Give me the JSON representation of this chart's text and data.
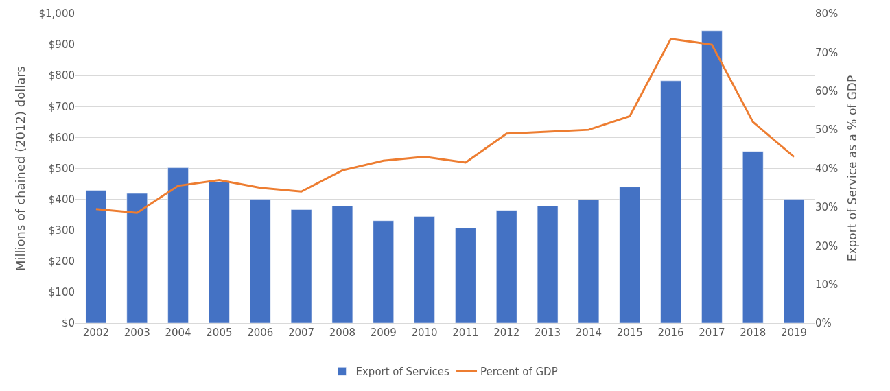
{
  "chart_data": {
    "type": "bar",
    "ylabel": "Millions of chained (2012) dollars",
    "y2label": "Export of Service as a % of GDP",
    "categories": [
      "2002",
      "2003",
      "2004",
      "2005",
      "2006",
      "2007",
      "2008",
      "2009",
      "2010",
      "2011",
      "2012",
      "2013",
      "2014",
      "2015",
      "2016",
      "2017",
      "2018",
      "2019"
    ],
    "series": [
      {
        "name": "Export of Services",
        "color": "#4472c4",
        "values": [
          429,
          419,
          502,
          457,
          400,
          367,
          379,
          331,
          345,
          307,
          364,
          379,
          398,
          440,
          783,
          945,
          555,
          400
        ]
      },
      {
        "name": "Percent of GDP",
        "type": "line",
        "axis": "y2",
        "color": "#ed7d31",
        "values": [
          29.5,
          28.5,
          35.5,
          37,
          35,
          34,
          39.5,
          42,
          43,
          41.5,
          49,
          49.5,
          50,
          53.5,
          73.5,
          72,
          52,
          43
        ]
      }
    ],
    "ylim": [
      0,
      1000
    ],
    "yticks": [
      {
        "value": 0,
        "label": "$0"
      },
      {
        "value": 100,
        "label": "$100"
      },
      {
        "value": 200,
        "label": "$200"
      },
      {
        "value": 300,
        "label": "$300"
      },
      {
        "value": 400,
        "label": "$400"
      },
      {
        "value": 500,
        "label": "$500"
      },
      {
        "value": 600,
        "label": "$600"
      },
      {
        "value": 700,
        "label": "$700"
      },
      {
        "value": 800,
        "label": "$800"
      },
      {
        "value": 900,
        "label": "$900"
      },
      {
        "value": 1000,
        "label": "$1,000"
      }
    ],
    "y2lim": [
      0,
      80
    ],
    "y2ticks": [
      {
        "value": 0,
        "label": "0%"
      },
      {
        "value": 10,
        "label": "10%"
      },
      {
        "value": 20,
        "label": "20%"
      },
      {
        "value": 30,
        "label": "30%"
      },
      {
        "value": 40,
        "label": "40%"
      },
      {
        "value": 50,
        "label": "50%"
      },
      {
        "value": 60,
        "label": "60%"
      },
      {
        "value": 70,
        "label": "70%"
      },
      {
        "value": 80,
        "label": "80%"
      }
    ],
    "grid": "y",
    "legend": "bottom"
  }
}
